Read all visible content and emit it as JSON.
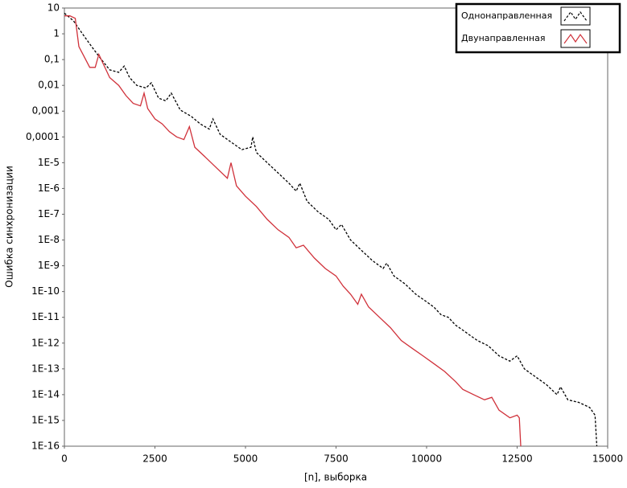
{
  "chart_data": {
    "type": "line",
    "y_scale": "log",
    "x_label": "[n], выборка",
    "y_label": "Ошибка синхронизации",
    "xlim": [
      0,
      15000
    ],
    "xticks": [
      0,
      2500,
      5000,
      7500,
      10000,
      12500,
      15000
    ],
    "ylim": [
      1e-16,
      10
    ],
    "yticks": [
      10,
      1,
      {
        "value": 0.1,
        "label": "0,1"
      },
      {
        "value": 0.01,
        "label": "0,01"
      },
      {
        "value": 0.001,
        "label": "0,001"
      },
      {
        "value": 0.0001,
        "label": "0,0001"
      },
      {
        "value": 1e-05,
        "label": "1E-5"
      },
      {
        "value": 1e-06,
        "label": "1E-6"
      },
      {
        "value": 1e-07,
        "label": "1E-7"
      },
      {
        "value": 1e-08,
        "label": "1E-8"
      },
      {
        "value": 1e-09,
        "label": "1E-9"
      },
      {
        "value": 1e-10,
        "label": "1E-10"
      },
      {
        "value": 1e-11,
        "label": "1E-11"
      },
      {
        "value": 1e-12,
        "label": "1E-12"
      },
      {
        "value": 1e-13,
        "label": "1E-13"
      },
      {
        "value": 1e-14,
        "label": "1E-14"
      },
      {
        "value": 1e-15,
        "label": "1E-15"
      },
      {
        "value": 1e-16,
        "label": "1E-16"
      }
    ],
    "legend_position": "top-right",
    "series": [
      {
        "name": "Однонаправленная",
        "color": "#000000",
        "style": "dashed",
        "x": [
          0,
          250,
          500,
          750,
          1000,
          1250,
          1500,
          1650,
          1800,
          2000,
          2250,
          2400,
          2600,
          2800,
          2950,
          3200,
          3500,
          3750,
          4000,
          4100,
          4300,
          4600,
          4900,
          5150,
          5200,
          5300,
          5600,
          5900,
          6200,
          6400,
          6500,
          6700,
          7000,
          7300,
          7500,
          7650,
          7900,
          8200,
          8500,
          8800,
          8900,
          9100,
          9400,
          9700,
          10000,
          10200,
          10400,
          10600,
          10800,
          11000,
          11200,
          11400,
          11700,
          12000,
          12300,
          12500,
          12700,
          13000,
          13300,
          13600,
          13700,
          13900,
          14200,
          14500,
          14650,
          14700
        ],
        "values": [
          6.3,
          3.2,
          1,
          0.32,
          0.11,
          0.04,
          0.032,
          0.056,
          0.02,
          0.01,
          0.0079,
          0.0126,
          0.0032,
          0.0025,
          0.005,
          0.0011,
          0.00063,
          0.00032,
          0.0002,
          0.0005,
          0.000126,
          6.3e-05,
          3.2e-05,
          4e-05,
          0.0001,
          2.5e-05,
          1e-05,
          4e-06,
          1.6e-06,
          7.9e-07,
          1.6e-06,
          3.2e-07,
          1.26e-07,
          6.3e-08,
          2.5e-08,
          4e-08,
          1e-08,
          4e-09,
          1.6e-09,
          7.9e-10,
          1.26e-09,
          4e-10,
          2e-10,
          7.9e-11,
          4e-11,
          2.5e-11,
          1.26e-11,
          1e-11,
          5e-12,
          3.2e-12,
          2e-12,
          1.26e-12,
          7.9e-13,
          3.2e-13,
          2e-13,
          3.2e-13,
          1e-13,
          5e-14,
          2.5e-14,
          1e-14,
          2e-14,
          6.3e-15,
          5e-15,
          3.2e-15,
          1.6e-15,
          1e-16
        ]
      },
      {
        "name": "Двунаправленная",
        "color": "#d0313a",
        "style": "solid",
        "x": [
          0,
          150,
          300,
          400,
          550,
          700,
          850,
          950,
          1050,
          1250,
          1500,
          1700,
          1900,
          2100,
          2200,
          2300,
          2500,
          2700,
          2900,
          3100,
          3300,
          3450,
          3600,
          3900,
          4200,
          4500,
          4600,
          4750,
          5000,
          5300,
          5600,
          5900,
          6200,
          6400,
          6600,
          6900,
          7200,
          7500,
          7700,
          7900,
          8100,
          8200,
          8400,
          8700,
          9000,
          9300,
          9600,
          9900,
          10200,
          10500,
          10800,
          11000,
          11300,
          11600,
          11800,
          12000,
          12300,
          12500,
          12560,
          12600
        ],
        "values": [
          5,
          5,
          4,
          0.32,
          0.126,
          0.05,
          0.05,
          0.16,
          0.079,
          0.02,
          0.01,
          0.004,
          0.002,
          0.0016,
          0.005,
          0.00126,
          0.0005,
          0.00032,
          0.00016,
          0.0001,
          7.9e-05,
          0.00025,
          4e-05,
          1.6e-05,
          6.3e-06,
          2.5e-06,
          1e-05,
          1.26e-06,
          5e-07,
          2e-07,
          6.3e-08,
          2.5e-08,
          1.26e-08,
          5e-09,
          6.3e-09,
          2e-09,
          7.9e-10,
          4e-10,
          1.6e-10,
          7.9e-11,
          3.2e-11,
          7.9e-11,
          2.5e-11,
          1e-11,
          4e-12,
          1.26e-12,
          6.3e-13,
          3.2e-13,
          1.6e-13,
          7.9e-14,
          3.2e-14,
          1.6e-14,
          1e-14,
          6.3e-15,
          7.9e-15,
          2.5e-15,
          1.26e-15,
          1.6e-15,
          1.26e-15,
          1e-16
        ]
      }
    ]
  }
}
